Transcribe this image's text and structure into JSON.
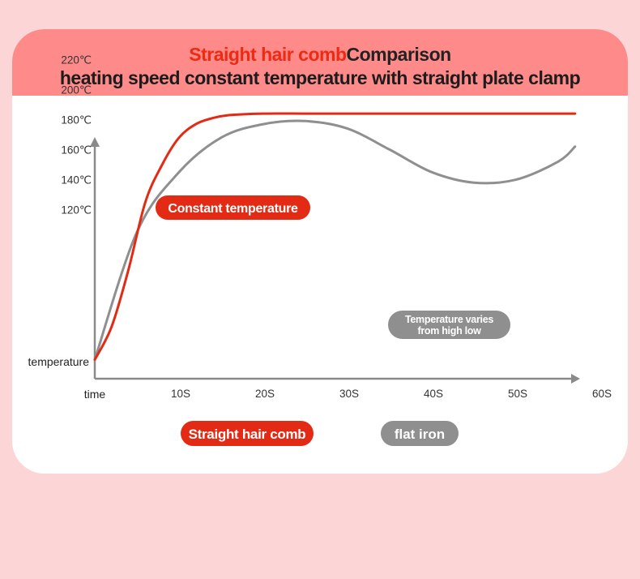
{
  "header": {
    "title_accent": "Straight hair comb",
    "title_rest": "Comparison",
    "subtitle": "heating speed constant temperature with straight plate clamp"
  },
  "colors": {
    "accent_red": "#e32a14",
    "gray": "#8f8f8f",
    "header_bg": "#fe8a8a",
    "page_bg": "#fcd6d6"
  },
  "chart_data": {
    "type": "line",
    "xlabel": "time",
    "ylabel": "temperature",
    "x_ticks": [
      "10S",
      "20S",
      "30S",
      "40S",
      "50S",
      "60S"
    ],
    "y_ticks": [
      "120℃",
      "140℃",
      "160℃",
      "180℃",
      "200℃",
      "220℃"
    ],
    "xlim": [
      0,
      60
    ],
    "series": [
      {
        "name": "Straight hair comb",
        "color": "#e32a14",
        "x": [
          0,
          2,
          4,
          6,
          8,
          10,
          12,
          14,
          16,
          20,
          25,
          30,
          40,
          50,
          57
        ],
        "y": [
          20,
          42,
          80,
          125,
          150,
          168,
          177,
          181,
          183,
          184,
          184,
          184,
          184,
          184,
          184
        ]
      },
      {
        "name": "flat iron",
        "color": "#8f8f8f",
        "x": [
          0,
          5,
          10,
          15,
          20,
          25,
          30,
          35,
          40,
          45,
          50,
          55,
          57
        ],
        "y": [
          20,
          105,
          145,
          168,
          177,
          179,
          174,
          160,
          145,
          138,
          140,
          152,
          162
        ]
      }
    ],
    "annotations": {
      "constant": "Constant temperature",
      "varies_line1": "Temperature varies",
      "varies_line2": "from high low"
    }
  }
}
